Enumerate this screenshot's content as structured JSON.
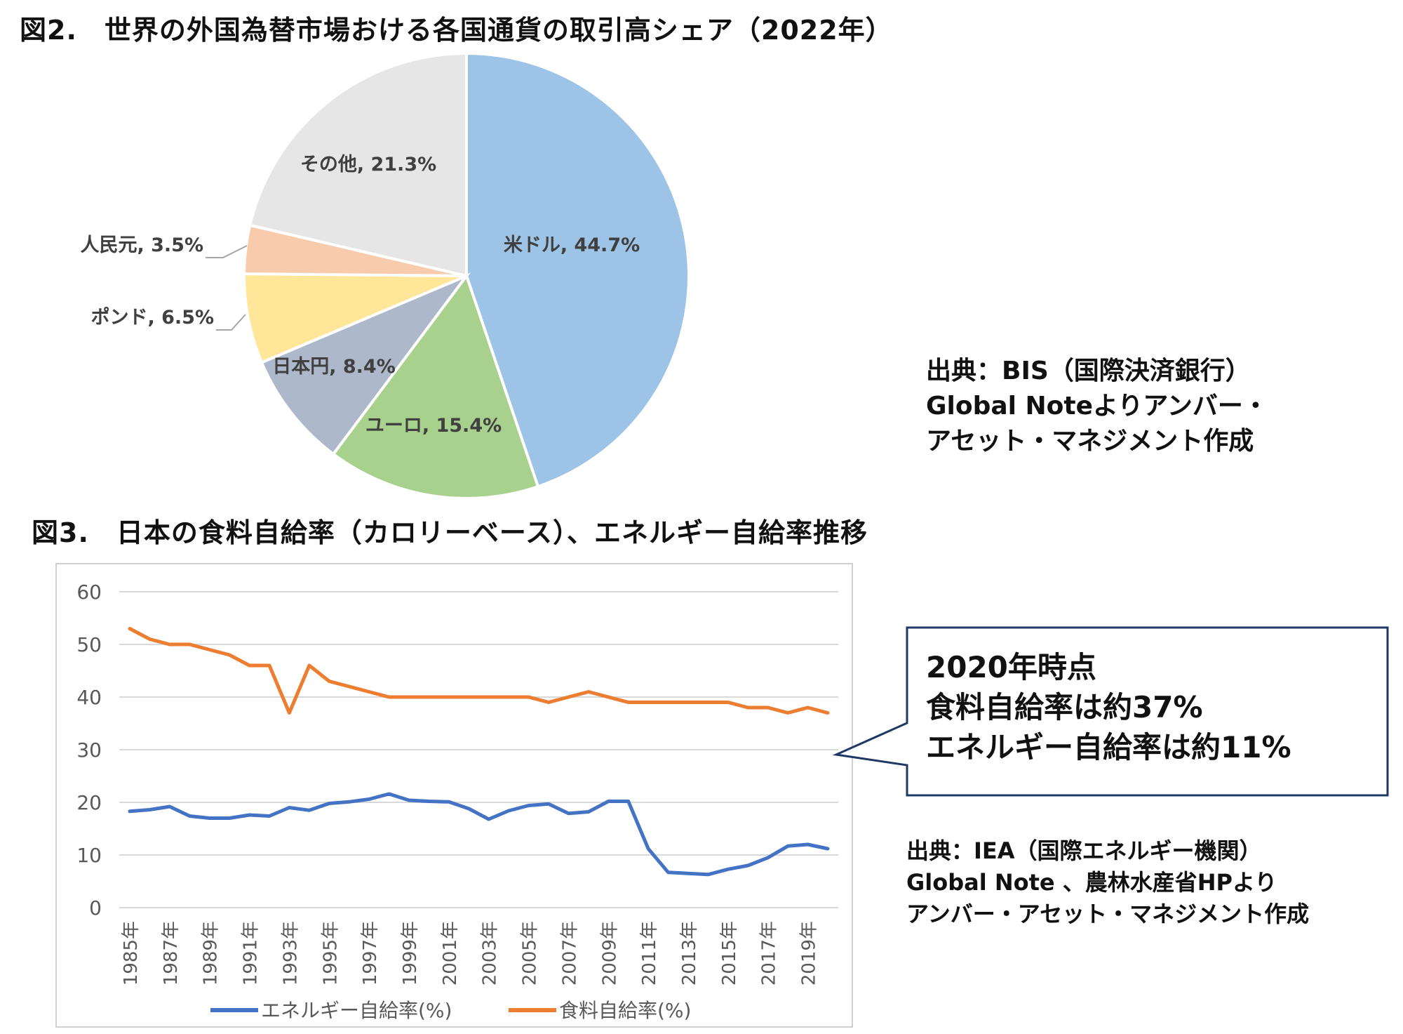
{
  "fig2": {
    "title": "図2.　世界の外国為替市場おける各国通貨の取引高シェア（2022年）",
    "source_lines": [
      "出典：BIS（国際決済銀行）",
      "Global Noteよりアンバー・",
      "アセット・マネジメント作成"
    ]
  },
  "fig3": {
    "title": "図3.　日本の食料自給率（カロリーベース）、エネルギー自給率推移",
    "callout_lines": [
      "2020年時点",
      "食料自給率は約37%",
      "エネルギー自給率は約11%"
    ],
    "source_lines": [
      "出典：IEA（国際エネルギー機関）",
      "Global Note 、農林水産省HPより",
      "アンバー・アセット・マネジメント作成"
    ]
  },
  "chart_data": [
    {
      "type": "pie",
      "title": "",
      "slices": [
        {
          "label": "米ドル",
          "value": 44.7,
          "text": "米ドル, 44.7%",
          "color": "#9DC3E6"
        },
        {
          "label": "ユーロ",
          "value": 15.4,
          "text": "ユーロ, 15.4%",
          "color": "#A9D18E"
        },
        {
          "label": "日本円",
          "value": 8.4,
          "text": "日本円, 8.4%",
          "color": "#ADB9CA"
        },
        {
          "label": "ポンド",
          "value": 6.5,
          "text": "ポンド, 6.5%",
          "color": "#FFE699"
        },
        {
          "label": "人民元",
          "value": 3.5,
          "text": "人民元, 3.5%",
          "color": "#F8CBAD"
        },
        {
          "label": "その他",
          "value": 21.3,
          "text": "その他, 21.3%",
          "color": "#E7E6E6"
        }
      ],
      "start_angle_deg": 0,
      "direction": "clockwise"
    },
    {
      "type": "line",
      "title": "",
      "x": [
        1985,
        1986,
        1987,
        1988,
        1989,
        1990,
        1991,
        1992,
        1993,
        1994,
        1995,
        1996,
        1997,
        1998,
        1999,
        2000,
        2001,
        2002,
        2003,
        2004,
        2005,
        2006,
        2007,
        2008,
        2009,
        2010,
        2011,
        2012,
        2013,
        2014,
        2015,
        2016,
        2017,
        2018,
        2019,
        2020
      ],
      "x_tick_labels": [
        "1985年",
        "1987年",
        "1989年",
        "1991年",
        "1993年",
        "1995年",
        "1997年",
        "1999年",
        "2001年",
        "2003年",
        "2005年",
        "2007年",
        "2009年",
        "2011年",
        "2013年",
        "2015年",
        "2017年",
        "2019年"
      ],
      "ylim": [
        0,
        60
      ],
      "y_ticks": [
        0,
        10,
        20,
        30,
        40,
        50,
        60
      ],
      "grid": true,
      "legend": "bottom",
      "series": [
        {
          "name": "エネルギー自給率(%)",
          "color": "#4472C4",
          "values": [
            18.3,
            18.6,
            19.2,
            17.4,
            17.0,
            17.0,
            17.6,
            17.4,
            19.0,
            18.5,
            19.8,
            20.1,
            20.6,
            21.6,
            20.4,
            20.2,
            20.1,
            18.8,
            16.8,
            18.4,
            19.4,
            19.7,
            17.9,
            18.2,
            20.2,
            20.2,
            11.2,
            6.7,
            6.5,
            6.3,
            7.3,
            8.0,
            9.5,
            11.7,
            12.0,
            11.2
          ]
        },
        {
          "name": "食料自給率(%)",
          "color": "#ED7D31",
          "values": [
            53,
            51,
            50,
            50,
            49,
            48,
            46,
            46,
            37,
            46,
            43,
            42,
            41,
            40,
            40,
            40,
            40,
            40,
            40,
            40,
            40,
            39,
            40,
            41,
            40,
            39,
            39,
            39,
            39,
            39,
            39,
            38,
            38,
            37,
            38,
            37
          ]
        }
      ]
    }
  ]
}
